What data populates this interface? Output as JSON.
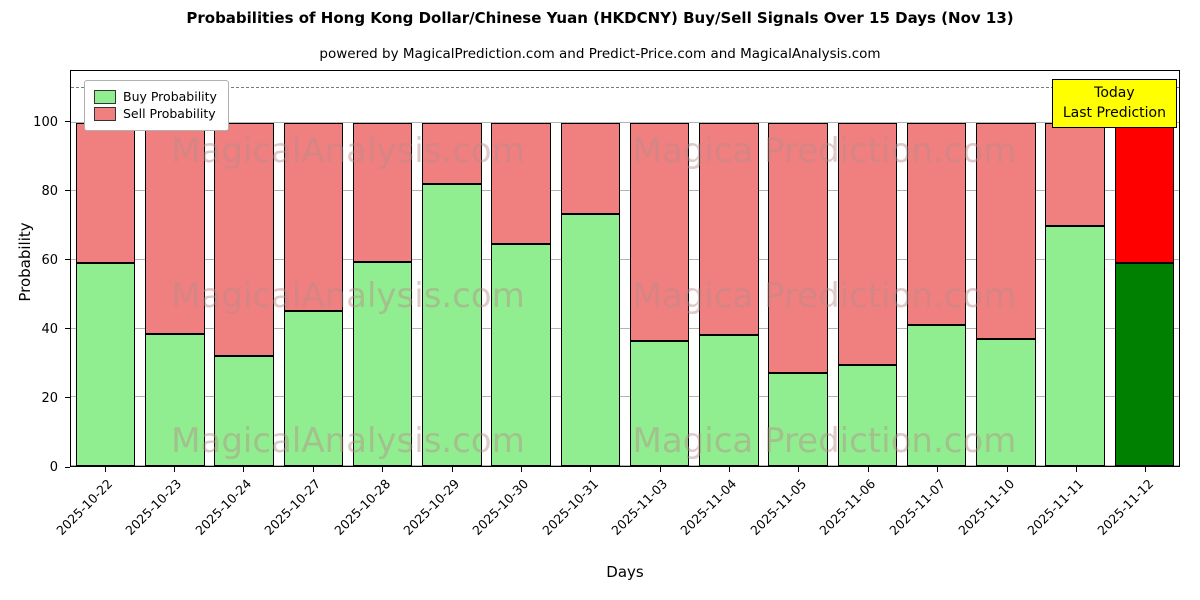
{
  "page": {
    "title": "Probabilities of Hong Kong Dollar/Chinese Yuan (HKDCNY) Buy/Sell Signals Over 15 Days (Nov 13)",
    "subtitle": "powered by MagicalPrediction.com and Predict-Price.com and MagicalAnalysis.com"
  },
  "legend": [
    {
      "label": "Buy Probability",
      "color": "#90ee90"
    },
    {
      "label": "Sell Probability",
      "color": "#f08080"
    }
  ],
  "annotation": {
    "line1": "Today",
    "line2": "Last Prediction",
    "bg": "#ffff00"
  },
  "watermark": {
    "left": "MagicalAnalysis.com",
    "right": "Magica Prediction.com"
  },
  "chart_data": {
    "type": "bar",
    "stacked": true,
    "title": "Probabilities of Hong Kong Dollar/Chinese Yuan (HKDCNY) Buy/Sell Signals Over 15 Days (Nov 13)",
    "xlabel": "Days",
    "ylabel": "Probability",
    "ylim": [
      0,
      115
    ],
    "yticks": [
      0,
      20,
      40,
      60,
      80,
      100
    ],
    "dashed_line_y": 110,
    "grid": true,
    "legend_position": "upper-left",
    "categories": [
      "2025-10-22",
      "2025-10-23",
      "2025-10-24",
      "2025-10-27",
      "2025-10-28",
      "2025-10-29",
      "2025-10-30",
      "2025-10-31",
      "2025-11-03",
      "2025-11-04",
      "2025-11-05",
      "2025-11-06",
      "2025-11-07",
      "2025-11-10",
      "2025-11-11",
      "2025-11-12"
    ],
    "series": [
      {
        "name": "Buy Probability",
        "values": [
          59,
          38.5,
          32,
          45,
          59.5,
          82,
          64.5,
          73.5,
          36.5,
          38,
          27,
          29.5,
          41,
          37,
          70,
          59
        ]
      },
      {
        "name": "Sell Probability",
        "values": [
          41,
          61.5,
          68,
          55,
          40.5,
          18,
          35.5,
          26.5,
          63.5,
          62,
          73,
          70.5,
          59,
          63,
          30,
          41
        ]
      }
    ],
    "colors": {
      "buy": "#90ee90",
      "sell": "#f08080",
      "bar_edge": "#000000",
      "last_bar_buy": "#008000",
      "last_bar_sell": "#ff0000"
    }
  }
}
